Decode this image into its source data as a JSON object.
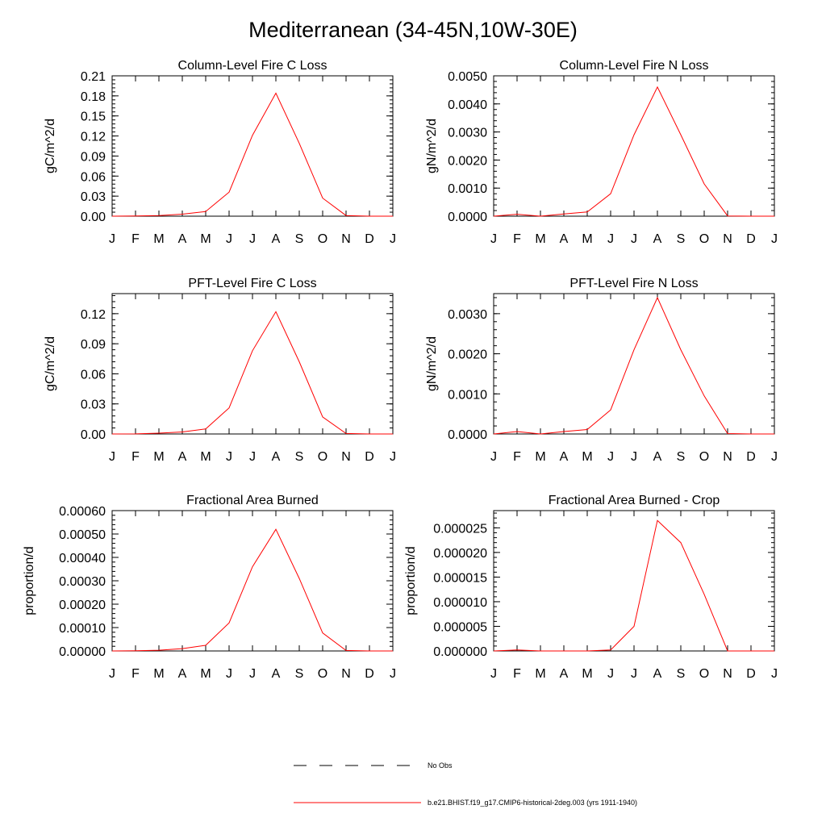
{
  "page": {
    "title": "Mediterranean (34-45N,10W-30E)"
  },
  "legend": {
    "items": [
      {
        "label": "No Obs",
        "style": "dashed",
        "color": "#000000"
      },
      {
        "label": "b.e21.BHIST.f19_g17.CMIP6-historical-2deg.003 (yrs 1911-1940)",
        "style": "solid",
        "color": "#ff0000"
      }
    ]
  },
  "series_color": "#ff0000",
  "chart_data": [
    {
      "type": "line",
      "title": "Column-Level Fire C Loss",
      "xlabel": "",
      "ylabel": "gC/m^2/d",
      "categories": [
        "J",
        "F",
        "M",
        "A",
        "M",
        "J",
        "J",
        "A",
        "S",
        "O",
        "N",
        "D",
        "J"
      ],
      "yticks": [
        "0.00",
        "0.03",
        "0.06",
        "0.09",
        "0.12",
        "0.15",
        "0.18",
        "0.21"
      ],
      "ylim": [
        0,
        0.21
      ],
      "grid": false,
      "series": [
        {
          "values": [
            0.0,
            0.0002,
            0.001,
            0.003,
            0.007,
            0.036,
            0.121,
            0.184,
            0.109,
            0.027,
            0.001,
            0.0,
            0.0
          ]
        }
      ]
    },
    {
      "type": "line",
      "title": "Column-Level Fire N Loss",
      "xlabel": "",
      "ylabel": "gN/m^2/d",
      "categories": [
        "J",
        "F",
        "M",
        "A",
        "M",
        "J",
        "J",
        "A",
        "S",
        "O",
        "N",
        "D",
        "J"
      ],
      "yticks": [
        "0.0000",
        "0.0010",
        "0.0020",
        "0.0030",
        "0.0040",
        "0.0050"
      ],
      "ylim": [
        0,
        0.005
      ],
      "grid": false,
      "series": [
        {
          "values": [
            0.0,
            7e-05,
            0.0,
            8e-05,
            0.00015,
            0.0008,
            0.0029,
            0.0046,
            0.0029,
            0.00115,
            1e-05,
            0.0,
            0.0
          ]
        }
      ]
    },
    {
      "type": "line",
      "title": "PFT-Level Fire C Loss",
      "xlabel": "",
      "ylabel": "gC/m^2/d",
      "categories": [
        "J",
        "F",
        "M",
        "A",
        "M",
        "J",
        "J",
        "A",
        "S",
        "O",
        "N",
        "D",
        "J"
      ],
      "yticks": [
        "0.00",
        "0.03",
        "0.06",
        "0.09",
        "0.12"
      ],
      "ylim": [
        0,
        0.14
      ],
      "grid": false,
      "series": [
        {
          "values": [
            0.0,
            0.0001,
            0.0008,
            0.002,
            0.005,
            0.026,
            0.083,
            0.122,
            0.072,
            0.017,
            0.0005,
            0.0,
            0.0
          ]
        }
      ]
    },
    {
      "type": "line",
      "title": "PFT-Level Fire N Loss",
      "xlabel": "",
      "ylabel": "gN/m^2/d",
      "categories": [
        "J",
        "F",
        "M",
        "A",
        "M",
        "J",
        "J",
        "A",
        "S",
        "O",
        "N",
        "D",
        "J"
      ],
      "yticks": [
        "0.0000",
        "0.0010",
        "0.0020",
        "0.0030"
      ],
      "ylim": [
        0,
        0.0035
      ],
      "grid": false,
      "series": [
        {
          "values": [
            0.0,
            6e-05,
            0.0,
            6e-05,
            0.00011,
            0.0006,
            0.0021,
            0.0034,
            0.0021,
            0.00095,
            1e-05,
            0.0,
            0.0
          ]
        }
      ]
    },
    {
      "type": "line",
      "title": "Fractional Area Burned",
      "xlabel": "",
      "ylabel": "proportion/d",
      "categories": [
        "J",
        "F",
        "M",
        "A",
        "M",
        "J",
        "J",
        "A",
        "S",
        "O",
        "N",
        "D",
        "J"
      ],
      "yticks": [
        "0.00000",
        "0.00010",
        "0.00020",
        "0.00030",
        "0.00040",
        "0.00050",
        "0.00060"
      ],
      "ylim": [
        0,
        0.0006
      ],
      "grid": false,
      "series": [
        {
          "values": [
            0.0,
            1e-06,
            3e-06,
            1e-05,
            2.4e-05,
            0.00012,
            0.00036,
            0.00052,
            0.00031,
            7.7e-05,
            2e-06,
            0.0,
            0.0
          ]
        }
      ]
    },
    {
      "type": "line",
      "title": "Fractional Area Burned - Crop",
      "xlabel": "",
      "ylabel": "proportion/d",
      "categories": [
        "J",
        "F",
        "M",
        "A",
        "M",
        "J",
        "J",
        "A",
        "S",
        "O",
        "N",
        "D",
        "J"
      ],
      "yticks": [
        "0.000000",
        "0.000005",
        "0.000010",
        "0.000015",
        "0.000020",
        "0.000025"
      ],
      "ylim": [
        0,
        2.85e-05
      ],
      "grid": false,
      "series": [
        {
          "values": [
            0.0,
            2e-07,
            0.0,
            0.0,
            0.0,
            2e-07,
            5e-06,
            2.65e-05,
            2.2e-05,
            1.15e-05,
            0.0,
            0.0,
            0.0
          ]
        }
      ]
    }
  ]
}
